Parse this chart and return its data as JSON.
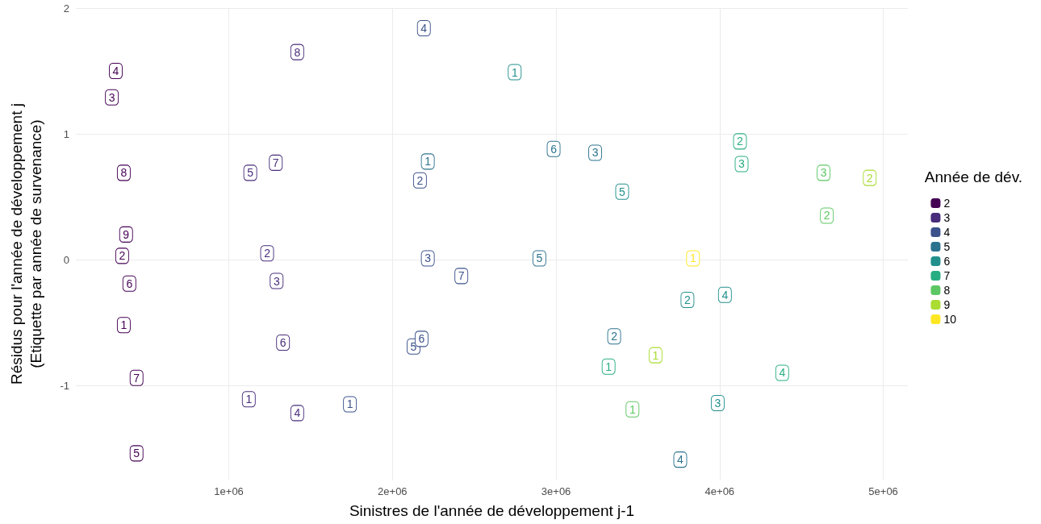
{
  "chart_data": {
    "type": "scatter",
    "xlabel": "Sinistres de l'année de développement j-1",
    "ylabel": "Résidus pour l'année de développement j\n(Etiquette par année de survenance)",
    "legend_title": "Année de dév.",
    "legend": "right",
    "grid": true,
    "marker": "square",
    "xlim": [
      65000,
      5150000
    ],
    "xticks": [
      {
        "value": 1000000,
        "label": "1e+06"
      },
      {
        "value": 2000000,
        "label": "2e+06"
      },
      {
        "value": 3000000,
        "label": "3e+06"
      },
      {
        "value": 4000000,
        "label": "4e+06"
      },
      {
        "value": 5000000,
        "label": "5e+06"
      }
    ],
    "ylim": [
      -1.75,
      2.0
    ],
    "yticks": [
      -1,
      0,
      1,
      2
    ],
    "series": [
      {
        "name": "2",
        "color": "#440154",
        "x": [
          358000,
          348000,
          285000,
          309000,
          436000,
          392000,
          436000,
          358000,
          372000
        ],
        "values": [
          -0.52,
          0.03,
          1.29,
          1.5,
          -1.54,
          -0.19,
          -0.94,
          0.69,
          0.2
        ]
      },
      {
        "name": "3",
        "color": "#472d7b",
        "x": [
          1122000,
          1234000,
          1292000,
          1418000,
          1131000,
          1331000,
          1287000,
          1418000
        ],
        "values": [
          -1.11,
          0.05,
          -0.17,
          -1.22,
          0.69,
          -0.66,
          0.77,
          1.65
        ]
      },
      {
        "name": "4",
        "color": "#3b528b",
        "x": [
          1740000,
          2168000,
          2216000,
          2192000,
          2129000,
          2178000,
          2421000
        ],
        "values": [
          -1.15,
          0.63,
          0.01,
          1.84,
          -0.69,
          -0.63,
          -0.13
        ]
      },
      {
        "name": "5",
        "color": "#2c728e",
        "x": [
          2216000,
          3355000,
          3239000,
          3759000,
          2898000,
          2985000
        ],
        "values": [
          0.78,
          -0.61,
          0.85,
          -1.59,
          0.01,
          0.88
        ]
      },
      {
        "name": "6",
        "color": "#21908c",
        "x": [
          2747000,
          3803000,
          3988000,
          4032000,
          3404000
        ],
        "values": [
          1.49,
          -0.32,
          -1.14,
          -0.28,
          0.54
        ]
      },
      {
        "name": "7",
        "color": "#27ad81",
        "x": [
          3321000,
          4124000,
          4134000,
          4382000
        ],
        "values": [
          -0.85,
          0.94,
          0.76,
          -0.9
        ]
      },
      {
        "name": "8",
        "color": "#5dc863",
        "x": [
          3467000,
          4655000,
          4635000
        ],
        "values": [
          -1.19,
          0.35,
          0.69
        ]
      },
      {
        "name": "9",
        "color": "#aadc32",
        "x": [
          3608000,
          4917000
        ],
        "values": [
          -0.76,
          0.65
        ]
      },
      {
        "name": "10",
        "color": "#fde725",
        "x": [
          3837000
        ],
        "values": [
          0.01
        ]
      }
    ],
    "annotations": [
      {
        "text": "1",
        "x": 358000,
        "y": -0.52
      },
      {
        "text": "2",
        "x": 348000,
        "y": 0.03
      },
      {
        "text": "3",
        "x": 285000,
        "y": 1.29
      },
      {
        "text": "4",
        "x": 309000,
        "y": 1.5
      },
      {
        "text": "5",
        "x": 436000,
        "y": -1.54
      },
      {
        "text": "6",
        "x": 392000,
        "y": -0.19
      },
      {
        "text": "7",
        "x": 436000,
        "y": -0.94
      },
      {
        "text": "8",
        "x": 358000,
        "y": 0.69
      },
      {
        "text": "9",
        "x": 372000,
        "y": 0.2
      },
      {
        "text": "1",
        "x": 1122000,
        "y": -1.11
      },
      {
        "text": "2",
        "x": 1234000,
        "y": 0.05
      },
      {
        "text": "3",
        "x": 1292000,
        "y": -0.17
      },
      {
        "text": "4",
        "x": 1418000,
        "y": -1.22
      },
      {
        "text": "5",
        "x": 1131000,
        "y": 0.69
      },
      {
        "text": "6",
        "x": 1331000,
        "y": -0.66
      },
      {
        "text": "7",
        "x": 1287000,
        "y": 0.77
      },
      {
        "text": "8",
        "x": 1418000,
        "y": 1.65
      },
      {
        "text": "1",
        "x": 1740000,
        "y": -1.15
      },
      {
        "text": "2",
        "x": 2168000,
        "y": 0.63
      },
      {
        "text": "3",
        "x": 2216000,
        "y": 0.01
      },
      {
        "text": "4",
        "x": 2192000,
        "y": 1.84
      },
      {
        "text": "5",
        "x": 2129000,
        "y": -0.69
      },
      {
        "text": "6",
        "x": 2178000,
        "y": -0.63
      },
      {
        "text": "7",
        "x": 2421000,
        "y": -0.13
      },
      {
        "text": "1",
        "x": 2216000,
        "y": 0.78
      },
      {
        "text": "2",
        "x": 3355000,
        "y": -0.61
      },
      {
        "text": "3",
        "x": 3239000,
        "y": 0.85
      },
      {
        "text": "4",
        "x": 3759000,
        "y": -1.59
      },
      {
        "text": "5",
        "x": 2898000,
        "y": 0.01
      },
      {
        "text": "6",
        "x": 2985000,
        "y": 0.88
      },
      {
        "text": "1",
        "x": 2747000,
        "y": 1.49
      },
      {
        "text": "2",
        "x": 3803000,
        "y": -0.32
      },
      {
        "text": "3",
        "x": 3988000,
        "y": -1.14
      },
      {
        "text": "4",
        "x": 4032000,
        "y": -0.28
      },
      {
        "text": "5",
        "x": 3404000,
        "y": 0.54
      },
      {
        "text": "1",
        "x": 3321000,
        "y": -0.85
      },
      {
        "text": "2",
        "x": 4124000,
        "y": 0.94
      },
      {
        "text": "3",
        "x": 4134000,
        "y": 0.76
      },
      {
        "text": "4",
        "x": 4382000,
        "y": -0.9
      },
      {
        "text": "1",
        "x": 3467000,
        "y": -1.19
      },
      {
        "text": "2",
        "x": 4655000,
        "y": 0.35
      },
      {
        "text": "3",
        "x": 4635000,
        "y": 0.69
      },
      {
        "text": "1",
        "x": 3608000,
        "y": -0.76
      },
      {
        "text": "2",
        "x": 4917000,
        "y": 0.65
      },
      {
        "text": "1",
        "x": 3837000,
        "y": 0.01
      }
    ]
  }
}
